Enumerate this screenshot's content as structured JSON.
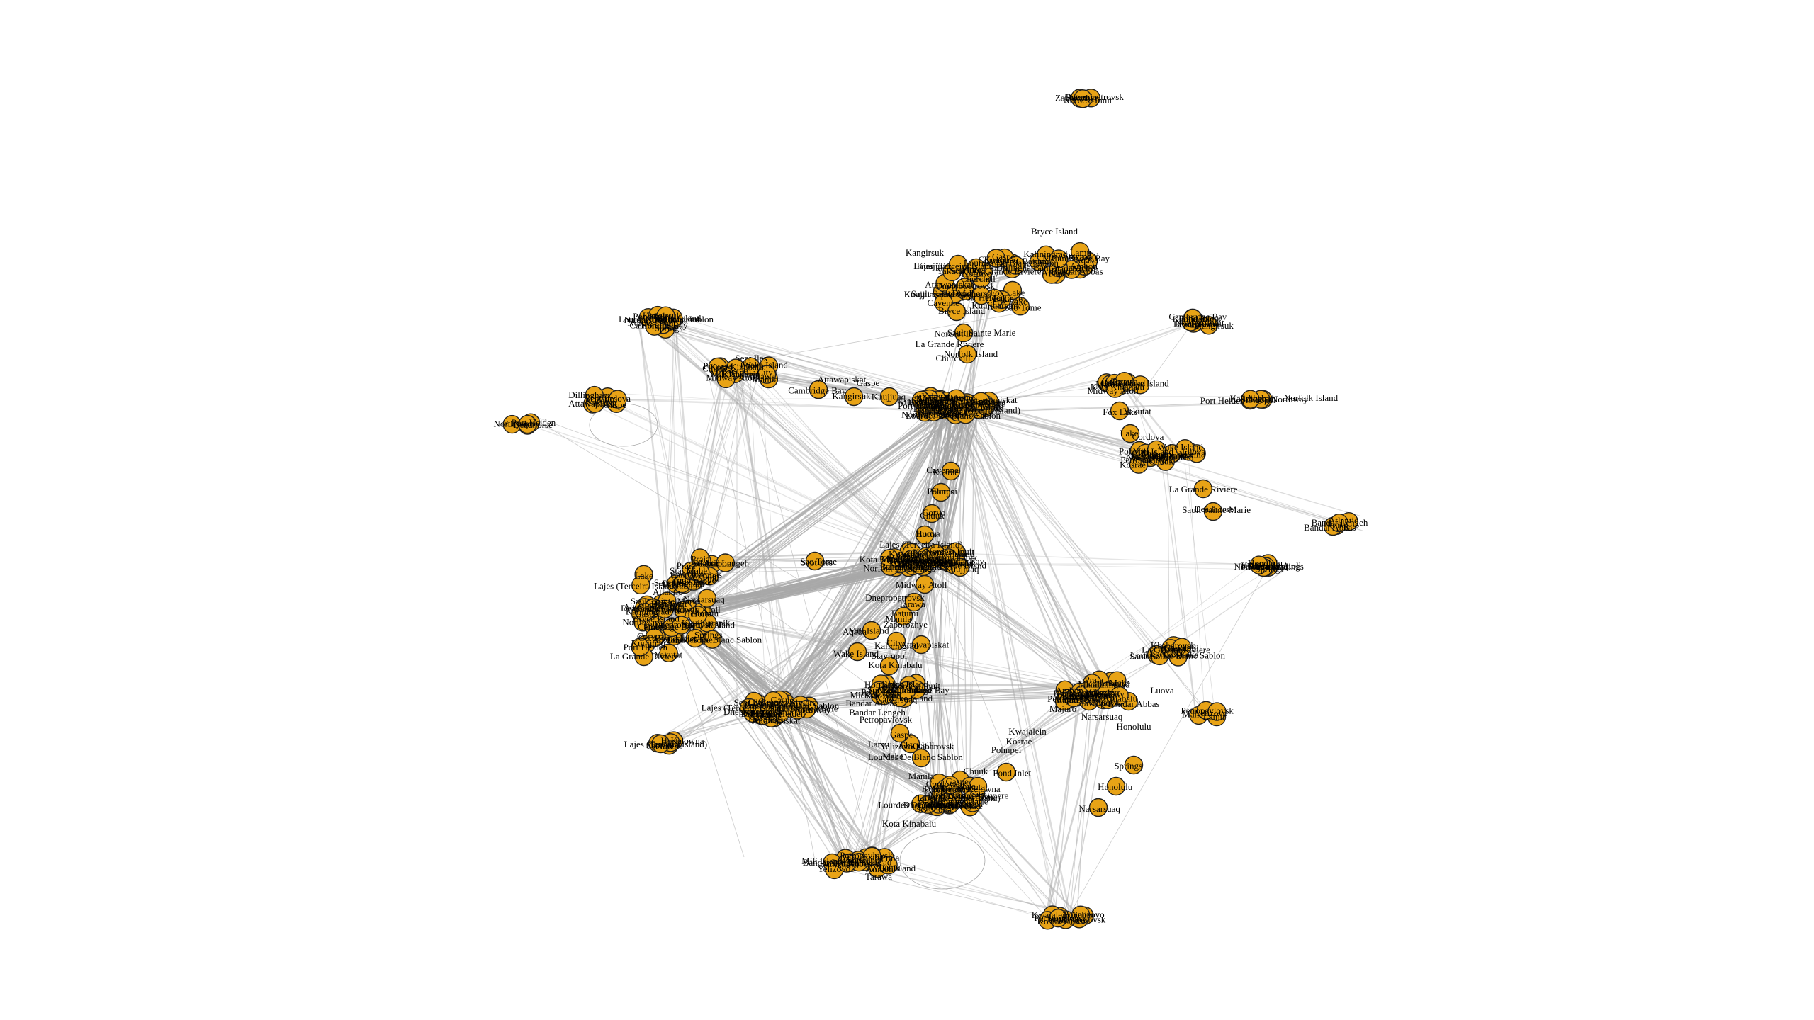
{
  "graph": {
    "node_color": "#E8A316",
    "node_border_color": "#202020",
    "edge_color": "#A8A8A8",
    "label_color": "#000000",
    "node_shape": "circle",
    "background": "#FFFFFF"
  },
  "labels": [
    "Nordest Inuit",
    "Bryce Island",
    "Cambridge Bay",
    "Kangirsuk",
    "Kuujjuaq",
    "Kuujjuarapik",
    "Fox Lake",
    "Lake",
    "Sault Sainte Marie",
    "La Grande Riviere",
    "Churchill",
    "Lourdes De Blanc Sablon",
    "Sept Iles",
    "Attawapiskat",
    "Gaspe",
    "Yakutat",
    "Cordova",
    "Dillingham",
    "Deadhorse",
    "Port Heiden",
    "Northway",
    "Cayenne",
    "Flores",
    "Corvo",
    "Horta",
    "Lajes (Terceira Island)",
    "Sao Tome",
    "Dnepropetrovsk",
    "Batumi",
    "Zaporozhye",
    "Aqaba",
    "Kaliningrad",
    "Stavropol",
    "Ambon",
    "Atlantic",
    "Praia",
    "Bandar Abbas",
    "Bandar Lengeh",
    "Lamu",
    "Mahe",
    "Petropavlovsk",
    "Yelizovo",
    "Khabarovsk",
    "Majuro",
    "Kwajalein",
    "Kosrae",
    "Pohnpei",
    "Chuuk",
    "Luova",
    "Manila",
    "City",
    "Kota Kinabalu",
    "Mili Island",
    "Wake Island",
    "Tarawa",
    "Midway Atoll",
    "Springs",
    "Honolulu",
    "Narsarsuaq",
    "Pond Inlet",
    "Kelowna",
    "Norfolk Island"
  ]
}
